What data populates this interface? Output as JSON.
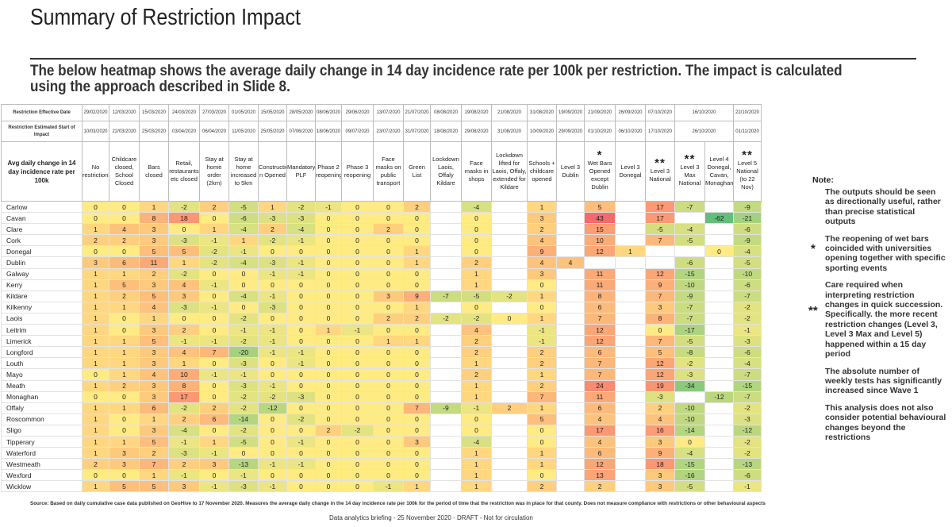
{
  "title": "Summary of Restriction Impact",
  "subtitle": "The below heatmap shows the average daily change in 14 day incidence rate per 100k per restriction.   The impact is calculated using the approach described in Slide 8.",
  "table": {
    "row_headers": [
      "Restriction Effective Date",
      "Restriction Estimated Start of Impact",
      "Avg daily change in 14 day incidence rate per 100k"
    ],
    "effective_dates": [
      "29/02/2020",
      "12/03/2020",
      "15/03/2020",
      "24/03/2020",
      "27/03/2020",
      "01/05/2020",
      "15/05/2020",
      "28/05/2020",
      "08/06/2020",
      "29/06/2020",
      "13/07/2020",
      "21/07/2020",
      "08/08/2020",
      "19/08/2020",
      "21/08/2020",
      "31/08/2020",
      "19/09/2020",
      "21/09/2020",
      "26/09/2020",
      "07/10/2020",
      "16/10/2020",
      "22/10/2020"
    ],
    "impact_dates": [
      "10/03/2020",
      "22/03/2020",
      "25/03/2020",
      "03/04/2020",
      "06/04/2020",
      "11/05/2020",
      "25/05/2020",
      "07/06/2020",
      "18/06/2020",
      "09/07/2020",
      "23/07/2020",
      "31/07/2020",
      "18/08/2020",
      "29/08/2020",
      "31/08/2020",
      "10/09/2020",
      "29/09/2020",
      "01/10/2020",
      "06/10/2020",
      "17/10/2020",
      "26/10/2020",
      "01/11/2020"
    ],
    "columns": [
      "No restrictions",
      "Childcare closed, School Closed",
      "Bars closed",
      "Retail, restaurants etc closed",
      "Stay at home order (2km)",
      "Stay at home increased to 5km",
      "Constructio n Opened",
      "Mandatory PLF",
      "Phase 2 reopening",
      "Phase 3 reopening",
      "Face masks on public transport",
      "Green List",
      "Lockdown Laois, Offaly Kildare",
      "Face masks in shops",
      "Lockdown lifted for Laois, Offaly, extended for Kildare",
      "Schools + childcare opened",
      "Level 3 Dublin",
      "Wet Bars Opened except Dublin",
      "Level 3 Donegal",
      "Level 3 National",
      "Level 3 Max National",
      "Level 4 Donegal, Cavan, Monaghan",
      "Level 5 National (to 22 Nov)"
    ],
    "column_marks": [
      "",
      "",
      "",
      "",
      "",
      "",
      "",
      "",
      "",
      "",
      "",
      "",
      "",
      "",
      "",
      "",
      "",
      "*",
      "",
      "**",
      "**",
      "",
      "**"
    ],
    "counties": [
      "Carlow",
      "Cavan",
      "Clare",
      "Cork",
      "Donegal",
      "Dublin",
      "Galway",
      "Kerry",
      "Kildare",
      "Kilkenny",
      "Laois",
      "Leitrim",
      "Limerick",
      "Longford",
      "Louth",
      "Mayo",
      "Meath",
      "Monaghan",
      "Offaly",
      "Roscommon",
      "Sligo",
      "Tipperary",
      "Waterford",
      "Westmeath",
      "Wexford",
      "Wicklow"
    ],
    "values": [
      [
        0,
        0,
        1,
        -2,
        2,
        -5,
        1,
        -2,
        -1,
        0,
        0,
        2,
        null,
        -4,
        null,
        1,
        null,
        5,
        null,
        17,
        -7,
        null,
        -9
      ],
      [
        0,
        0,
        8,
        18,
        0,
        -6,
        -3,
        -3,
        0,
        0,
        0,
        0,
        null,
        0,
        null,
        3,
        null,
        43,
        null,
        17,
        null,
        -62,
        -21
      ],
      [
        1,
        4,
        3,
        0,
        1,
        -4,
        2,
        -4,
        0,
        0,
        2,
        0,
        null,
        0,
        null,
        2,
        null,
        15,
        null,
        -5,
        -4,
        null,
        -6
      ],
      [
        2,
        2,
        3,
        -3,
        -1,
        1,
        -2,
        -1,
        0,
        0,
        0,
        0,
        null,
        0,
        null,
        4,
        null,
        10,
        null,
        7,
        -5,
        null,
        -9
      ],
      [
        0,
        0,
        5,
        5,
        -2,
        -1,
        0,
        0,
        0,
        0,
        0,
        1,
        null,
        0,
        null,
        9,
        null,
        12,
        1,
        null,
        null,
        0,
        -4
      ],
      [
        3,
        6,
        11,
        1,
        -2,
        -4,
        -3,
        -1,
        0,
        0,
        0,
        1,
        null,
        2,
        null,
        4,
        4,
        null,
        null,
        null,
        -6,
        null,
        -5
      ],
      [
        1,
        1,
        2,
        -2,
        0,
        0,
        -1,
        -1,
        0,
        0,
        0,
        0,
        null,
        1,
        null,
        3,
        null,
        11,
        null,
        12,
        -15,
        null,
        -10
      ],
      [
        1,
        5,
        3,
        4,
        -1,
        0,
        0,
        0,
        0,
        0,
        0,
        0,
        null,
        1,
        null,
        0,
        null,
        11,
        null,
        9,
        -10,
        null,
        -6
      ],
      [
        1,
        2,
        5,
        3,
        0,
        -4,
        -1,
        0,
        0,
        0,
        3,
        9,
        -7,
        -5,
        -2,
        1,
        null,
        8,
        null,
        7,
        -9,
        null,
        -7
      ],
      [
        1,
        1,
        4,
        -3,
        -1,
        0,
        -3,
        0,
        0,
        0,
        0,
        1,
        null,
        0,
        null,
        0,
        null,
        6,
        null,
        3,
        -7,
        null,
        -2
      ],
      [
        1,
        0,
        1,
        0,
        0,
        -2,
        0,
        0,
        0,
        0,
        2,
        2,
        -2,
        -2,
        0,
        1,
        null,
        7,
        null,
        8,
        -7,
        null,
        -2
      ],
      [
        1,
        0,
        3,
        2,
        0,
        -1,
        -1,
        0,
        1,
        -1,
        0,
        0,
        null,
        4,
        null,
        -1,
        null,
        12,
        null,
        0,
        -17,
        null,
        -1
      ],
      [
        1,
        1,
        5,
        -1,
        -1,
        -2,
        -1,
        0,
        0,
        0,
        1,
        1,
        null,
        2,
        null,
        -1,
        null,
        12,
        null,
        7,
        -5,
        null,
        -3
      ],
      [
        1,
        1,
        3,
        4,
        7,
        -20,
        -1,
        -1,
        0,
        0,
        0,
        0,
        null,
        2,
        null,
        2,
        null,
        6,
        null,
        5,
        -8,
        null,
        -6
      ],
      [
        1,
        1,
        3,
        1,
        0,
        -3,
        0,
        -1,
        0,
        0,
        0,
        0,
        null,
        1,
        null,
        2,
        null,
        7,
        null,
        12,
        -2,
        null,
        -4
      ],
      [
        0,
        1,
        4,
        10,
        -1,
        -1,
        0,
        0,
        0,
        0,
        0,
        0,
        null,
        2,
        null,
        1,
        null,
        7,
        null,
        12,
        -3,
        null,
        -7
      ],
      [
        1,
        2,
        3,
        8,
        0,
        -3,
        -1,
        0,
        0,
        0,
        0,
        0,
        null,
        1,
        null,
        2,
        null,
        24,
        null,
        19,
        -34,
        null,
        -15
      ],
      [
        0,
        0,
        3,
        17,
        0,
        -2,
        -2,
        -3,
        0,
        0,
        0,
        0,
        null,
        1,
        null,
        7,
        null,
        11,
        null,
        -3,
        null,
        -12,
        -7
      ],
      [
        1,
        1,
        6,
        -2,
        2,
        -2,
        -12,
        0,
        0,
        0,
        0,
        7,
        -9,
        -1,
        2,
        1,
        null,
        6,
        null,
        2,
        -10,
        null,
        -2
      ],
      [
        1,
        0,
        1,
        2,
        6,
        -14,
        0,
        -2,
        0,
        0,
        0,
        0,
        null,
        0,
        null,
        5,
        null,
        4,
        null,
        4,
        -10,
        null,
        -3
      ],
      [
        1,
        0,
        3,
        -4,
        0,
        -2,
        0,
        0,
        2,
        -2,
        0,
        0,
        null,
        0,
        null,
        0,
        null,
        17,
        null,
        16,
        -14,
        null,
        -12
      ],
      [
        1,
        1,
        5,
        -1,
        1,
        -5,
        0,
        -1,
        0,
        0,
        0,
        3,
        null,
        -4,
        null,
        0,
        null,
        4,
        null,
        3,
        0,
        null,
        -2
      ],
      [
        1,
        3,
        2,
        -3,
        -1,
        0,
        0,
        0,
        0,
        0,
        0,
        0,
        null,
        1,
        null,
        1,
        null,
        6,
        null,
        9,
        -4,
        null,
        -2
      ],
      [
        2,
        3,
        7,
        2,
        3,
        -13,
        -1,
        -1,
        0,
        0,
        0,
        0,
        null,
        1,
        null,
        1,
        null,
        12,
        null,
        18,
        -15,
        null,
        -13
      ],
      [
        0,
        0,
        1,
        -1,
        0,
        -1,
        0,
        0,
        0,
        0,
        0,
        0,
        null,
        1,
        null,
        0,
        null,
        13,
        null,
        3,
        -16,
        null,
        -6
      ],
      [
        1,
        5,
        5,
        3,
        -1,
        -3,
        -1,
        0,
        0,
        0,
        -1,
        1,
        null,
        1,
        null,
        2,
        null,
        2,
        null,
        3,
        -5,
        null,
        -1
      ]
    ]
  },
  "notes": {
    "heading": "Note:",
    "items": [
      "The outputs should be seen as directionally useful, rather than precise statistical outputs",
      "The reopening of wet bars coincided with universities opening together with specific sporting events",
      "Care required when interpreting restriction changes in quick succession. Specifically. the more recent restriction changes (Level 3, Level 3 Max and Level 5) happened within a 15 day period",
      "The absolute number of weekly tests has significantly increased since Wave 1",
      "This analysis does not also consider potential behavioural changes beyond the restrictions"
    ],
    "star_single": "*",
    "star_double": "**"
  },
  "source": "Source: Based on daily cumulative case data published on GeoHive to 17 November 2020. Measures the average daily change in the 14 day incidence rate per 100k for the period of time that the restriction was in place for that county. Does not measure compliance with restrictions or other behavioural aspects",
  "footer": "Data analytics briefing - 25 November 2020 - DRAFT - Not for circulation",
  "colors": {
    "red": "#f8696b",
    "yellow": "#ffeb84",
    "green": "#63be7b"
  }
}
